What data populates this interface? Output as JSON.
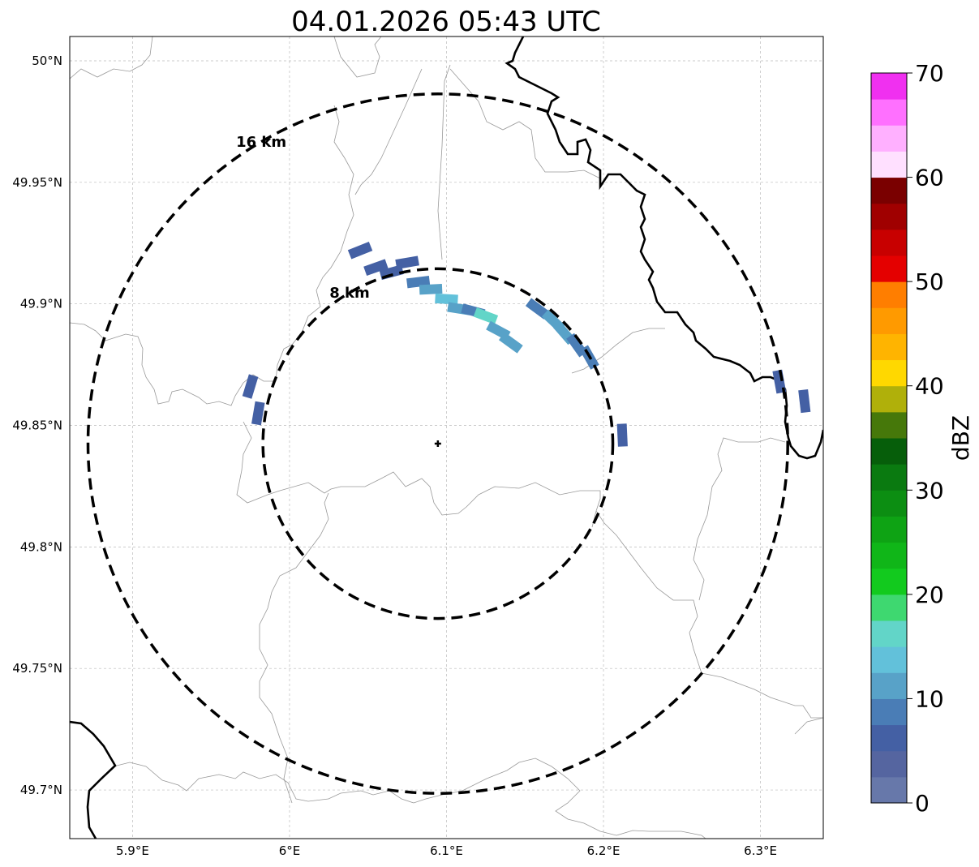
{
  "title": "04.01.2026 05:43 UTC",
  "map": {
    "lon_range": [
      5.86,
      6.34
    ],
    "lat_range": [
      49.68,
      50.01
    ],
    "lon_ticks": [
      {
        "value": 5.9,
        "label": "5.9°E"
      },
      {
        "value": 6.0,
        "label": "6°E"
      },
      {
        "value": 6.1,
        "label": "6.1°E"
      },
      {
        "value": 6.2,
        "label": "6.2°E"
      },
      {
        "value": 6.3,
        "label": "6.3°E"
      }
    ],
    "lat_ticks": [
      {
        "value": 50.0,
        "label": "50°N"
      },
      {
        "value": 49.95,
        "label": "49.95°N"
      },
      {
        "value": 49.9,
        "label": "49.9°N"
      },
      {
        "value": 49.85,
        "label": "49.85°N"
      },
      {
        "value": 49.8,
        "label": "49.8°N"
      },
      {
        "value": 49.75,
        "label": "49.75°N"
      },
      {
        "value": 49.7,
        "label": "49.7°N"
      }
    ],
    "radar_site": {
      "lon": 6.0945,
      "lat": 49.8425
    },
    "rings": [
      {
        "radius_km": 8,
        "label": "8 km"
      },
      {
        "radius_km": 16,
        "label": "16 km"
      }
    ],
    "echoes": [
      {
        "lon": 6.045,
        "lat": 49.922,
        "dbz": 6
      },
      {
        "lon": 6.055,
        "lat": 49.915,
        "dbz": 7
      },
      {
        "lon": 6.065,
        "lat": 49.913,
        "dbz": 5
      },
      {
        "lon": 6.075,
        "lat": 49.917,
        "dbz": 6
      },
      {
        "lon": 6.082,
        "lat": 49.909,
        "dbz": 8
      },
      {
        "lon": 6.09,
        "lat": 49.906,
        "dbz": 12
      },
      {
        "lon": 6.1,
        "lat": 49.902,
        "dbz": 14
      },
      {
        "lon": 6.108,
        "lat": 49.898,
        "dbz": 10
      },
      {
        "lon": 6.117,
        "lat": 49.897,
        "dbz": 9
      },
      {
        "lon": 6.125,
        "lat": 49.895,
        "dbz": 15
      },
      {
        "lon": 6.133,
        "lat": 49.889,
        "dbz": 11
      },
      {
        "lon": 6.141,
        "lat": 49.884,
        "dbz": 12
      },
      {
        "lon": 6.158,
        "lat": 49.898,
        "dbz": 9
      },
      {
        "lon": 6.168,
        "lat": 49.893,
        "dbz": 10
      },
      {
        "lon": 6.175,
        "lat": 49.888,
        "dbz": 12
      },
      {
        "lon": 6.183,
        "lat": 49.883,
        "dbz": 8
      },
      {
        "lon": 6.191,
        "lat": 49.878,
        "dbz": 9
      },
      {
        "lon": 5.975,
        "lat": 49.866,
        "dbz": 5
      },
      {
        "lon": 5.98,
        "lat": 49.855,
        "dbz": 6
      },
      {
        "lon": 6.212,
        "lat": 49.846,
        "dbz": 7
      },
      {
        "lon": 6.312,
        "lat": 49.868,
        "dbz": 5
      },
      {
        "lon": 6.328,
        "lat": 49.86,
        "dbz": 6
      }
    ]
  },
  "colorbar": {
    "label": "dBZ",
    "min": 0,
    "max": 70,
    "ticks": [
      0,
      10,
      20,
      30,
      40,
      50,
      60,
      70
    ],
    "colors": [
      "#6778aa",
      "#5565a0",
      "#4460a4",
      "#4a7db6",
      "#58a2c8",
      "#62c1da",
      "#62d5c8",
      "#3ed870",
      "#12ca1e",
      "#10b618",
      "#0ea314",
      "#0c8e12",
      "#0a7a10",
      "#065e0a",
      "#46780a",
      "#b0b00a",
      "#ffd800",
      "#ffb400",
      "#ff9a00",
      "#ff7e00",
      "#e40000",
      "#c80000",
      "#a00000",
      "#7a0000",
      "#ffe0ff",
      "#ffb0ff",
      "#ff70ff",
      "#f030f0"
    ]
  }
}
